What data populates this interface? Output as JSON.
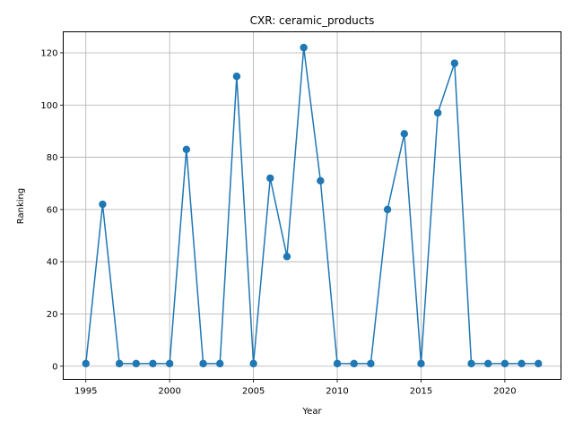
{
  "chart_data": {
    "type": "line",
    "title": "CXR: ceramic_products",
    "xlabel": "Year",
    "ylabel": "Ranking",
    "xlim": [
      1993.65,
      2023.35
    ],
    "ylim": [
      -5.05,
      128.05
    ],
    "xticks": [
      1995,
      2000,
      2005,
      2010,
      2015,
      2020
    ],
    "yticks": [
      0,
      20,
      40,
      60,
      80,
      100,
      120
    ],
    "grid": true,
    "color": "#1f77b4",
    "marker": "circle",
    "series": [
      {
        "x": [
          1995,
          1996,
          1997,
          1998,
          1999,
          2000,
          2001,
          2002,
          2003,
          2004,
          2005,
          2006,
          2007,
          2008,
          2009,
          2010,
          2011,
          2012,
          2013,
          2014,
          2015,
          2016,
          2017,
          2018,
          2019,
          2020,
          2021,
          2022
        ],
        "y": [
          1,
          62,
          1,
          1,
          1,
          1,
          83,
          1,
          1,
          111,
          1,
          72,
          42,
          122,
          71,
          1,
          1,
          1,
          60,
          89,
          1,
          97,
          116,
          1,
          1,
          1,
          1,
          1
        ]
      }
    ]
  }
}
